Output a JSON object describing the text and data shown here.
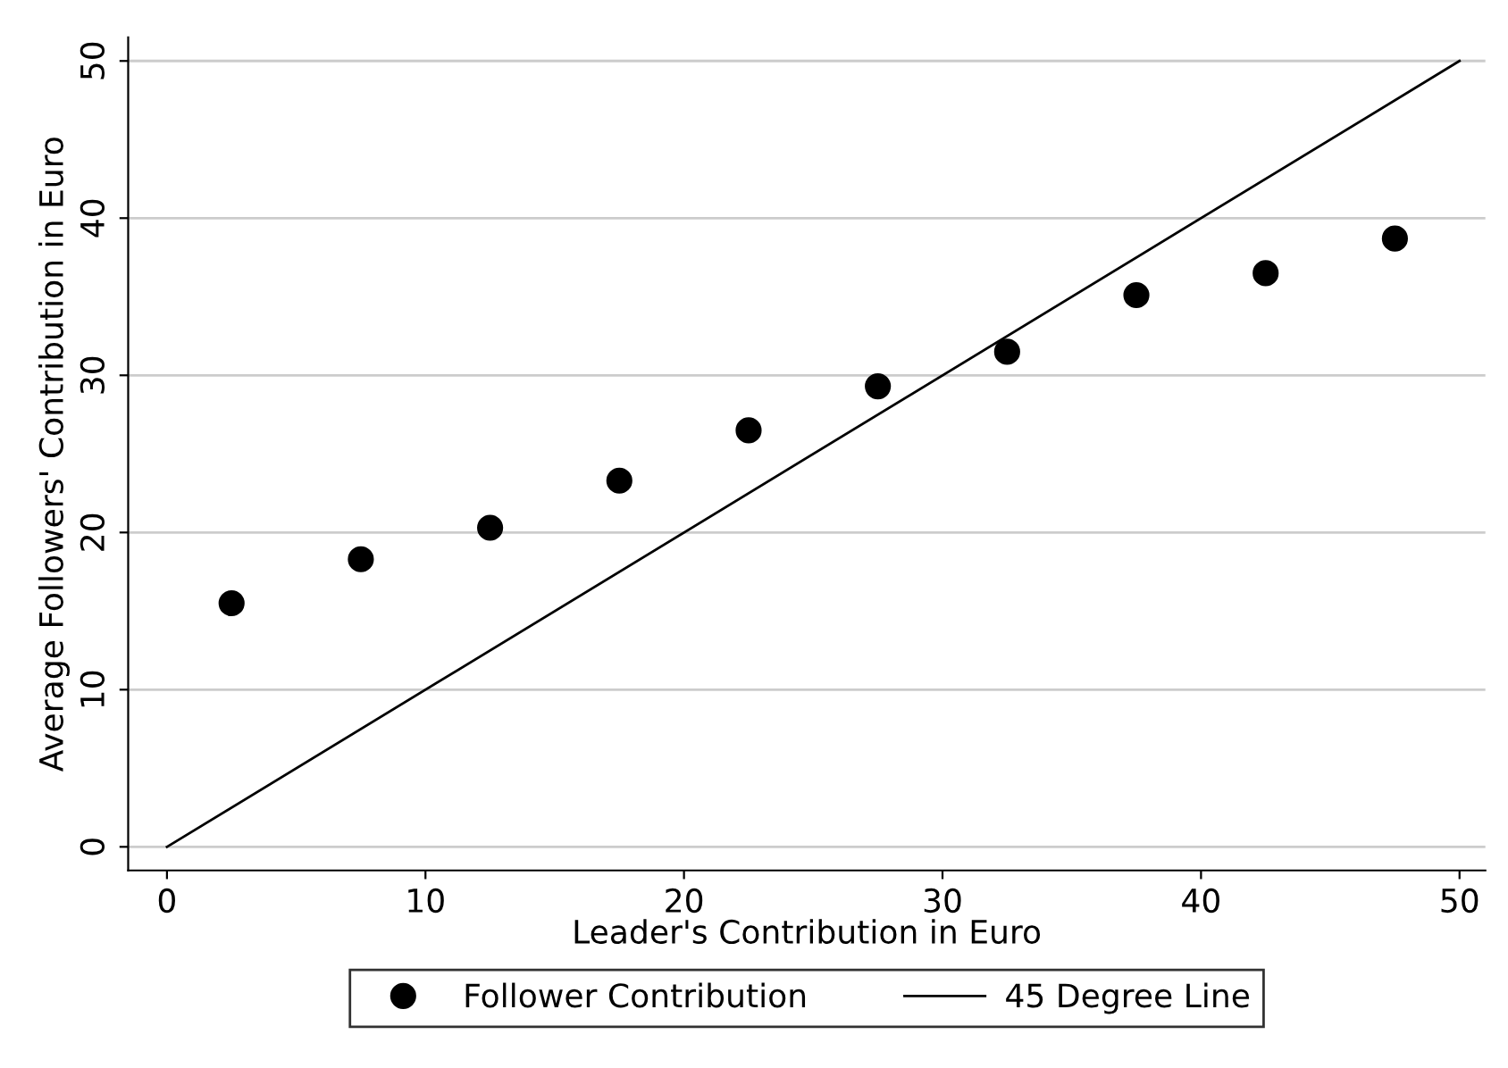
{
  "chart_data": {
    "type": "scatter",
    "xlabel": "Leader's Contribution in Euro",
    "ylabel": "Average Followers' Contribution in Euro",
    "series": [
      {
        "name": "Follower Contribution",
        "color": "#000000",
        "marker": "circle",
        "x": [
          2.5,
          7.5,
          12.5,
          17.5,
          22.5,
          27.5,
          32.5,
          37.5,
          42.5,
          47.5
        ],
        "values": [
          15.5,
          18.3,
          20.3,
          23.3,
          26.5,
          29.3,
          31.5,
          35.1,
          36.5,
          38.7
        ]
      },
      {
        "name": "45 Degree Line",
        "type": "line",
        "color": "#000000",
        "line_style": "solid",
        "marker": "none",
        "x": [
          0,
          50
        ],
        "values": [
          0,
          50
        ]
      }
    ],
    "xlim": [
      -1.5,
      51
    ],
    "ylim": [
      -1.5,
      51.5
    ],
    "xticks": [
      0,
      10,
      20,
      30,
      40,
      50
    ],
    "yticks": [
      0,
      10,
      20,
      30,
      40,
      50
    ],
    "grid": "y",
    "legend": "bottom"
  }
}
